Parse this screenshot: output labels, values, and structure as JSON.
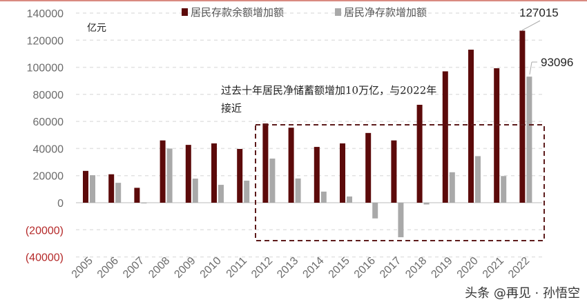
{
  "chart_data": {
    "type": "bar",
    "unit_label": "亿元",
    "categories": [
      "2005",
      "2006",
      "2007",
      "2008",
      "2009",
      "2010",
      "2011",
      "2012",
      "2013",
      "2014",
      "2015",
      "2016",
      "2017",
      "2018",
      "2019",
      "2020",
      "2021",
      "2022"
    ],
    "series": [
      {
        "name": "居民存款余额增加额",
        "color": "#5c0a0a",
        "values": [
          23500,
          21000,
          11000,
          46000,
          42700,
          43800,
          39700,
          58500,
          55400,
          41200,
          43800,
          51500,
          46000,
          72300,
          97000,
          113000,
          99300,
          127015
        ]
      },
      {
        "name": "居民净存款增加额",
        "color": "#a9a9a9",
        "values": [
          20300,
          14700,
          -500,
          40000,
          17800,
          13200,
          16300,
          32600,
          17900,
          8200,
          4600,
          -11600,
          -25500,
          -1300,
          22500,
          34400,
          19700,
          93096
        ]
      }
    ],
    "yticks": [
      140000,
      120000,
      100000,
      80000,
      60000,
      40000,
      20000,
      0,
      -20000,
      -40000
    ],
    "ytick_labels": [
      "140000",
      "120000",
      "100000",
      "80000",
      "60000",
      "40000",
      "20000",
      "0",
      "(20000)",
      "(40000)"
    ],
    "ylim": [
      -40000,
      140000
    ],
    "grid": true,
    "legend_position": "top",
    "data_labels": {
      "dark_2022": "127015",
      "gray_2022": "93096"
    },
    "annotation": {
      "line1": "过去十年居民净储蓄额增加10万亿，与2022年",
      "line2": "接近"
    },
    "highlight_box": {
      "from": "2012",
      "to": "2022"
    }
  },
  "watermark": "头条 @再见 · 孙悟空"
}
